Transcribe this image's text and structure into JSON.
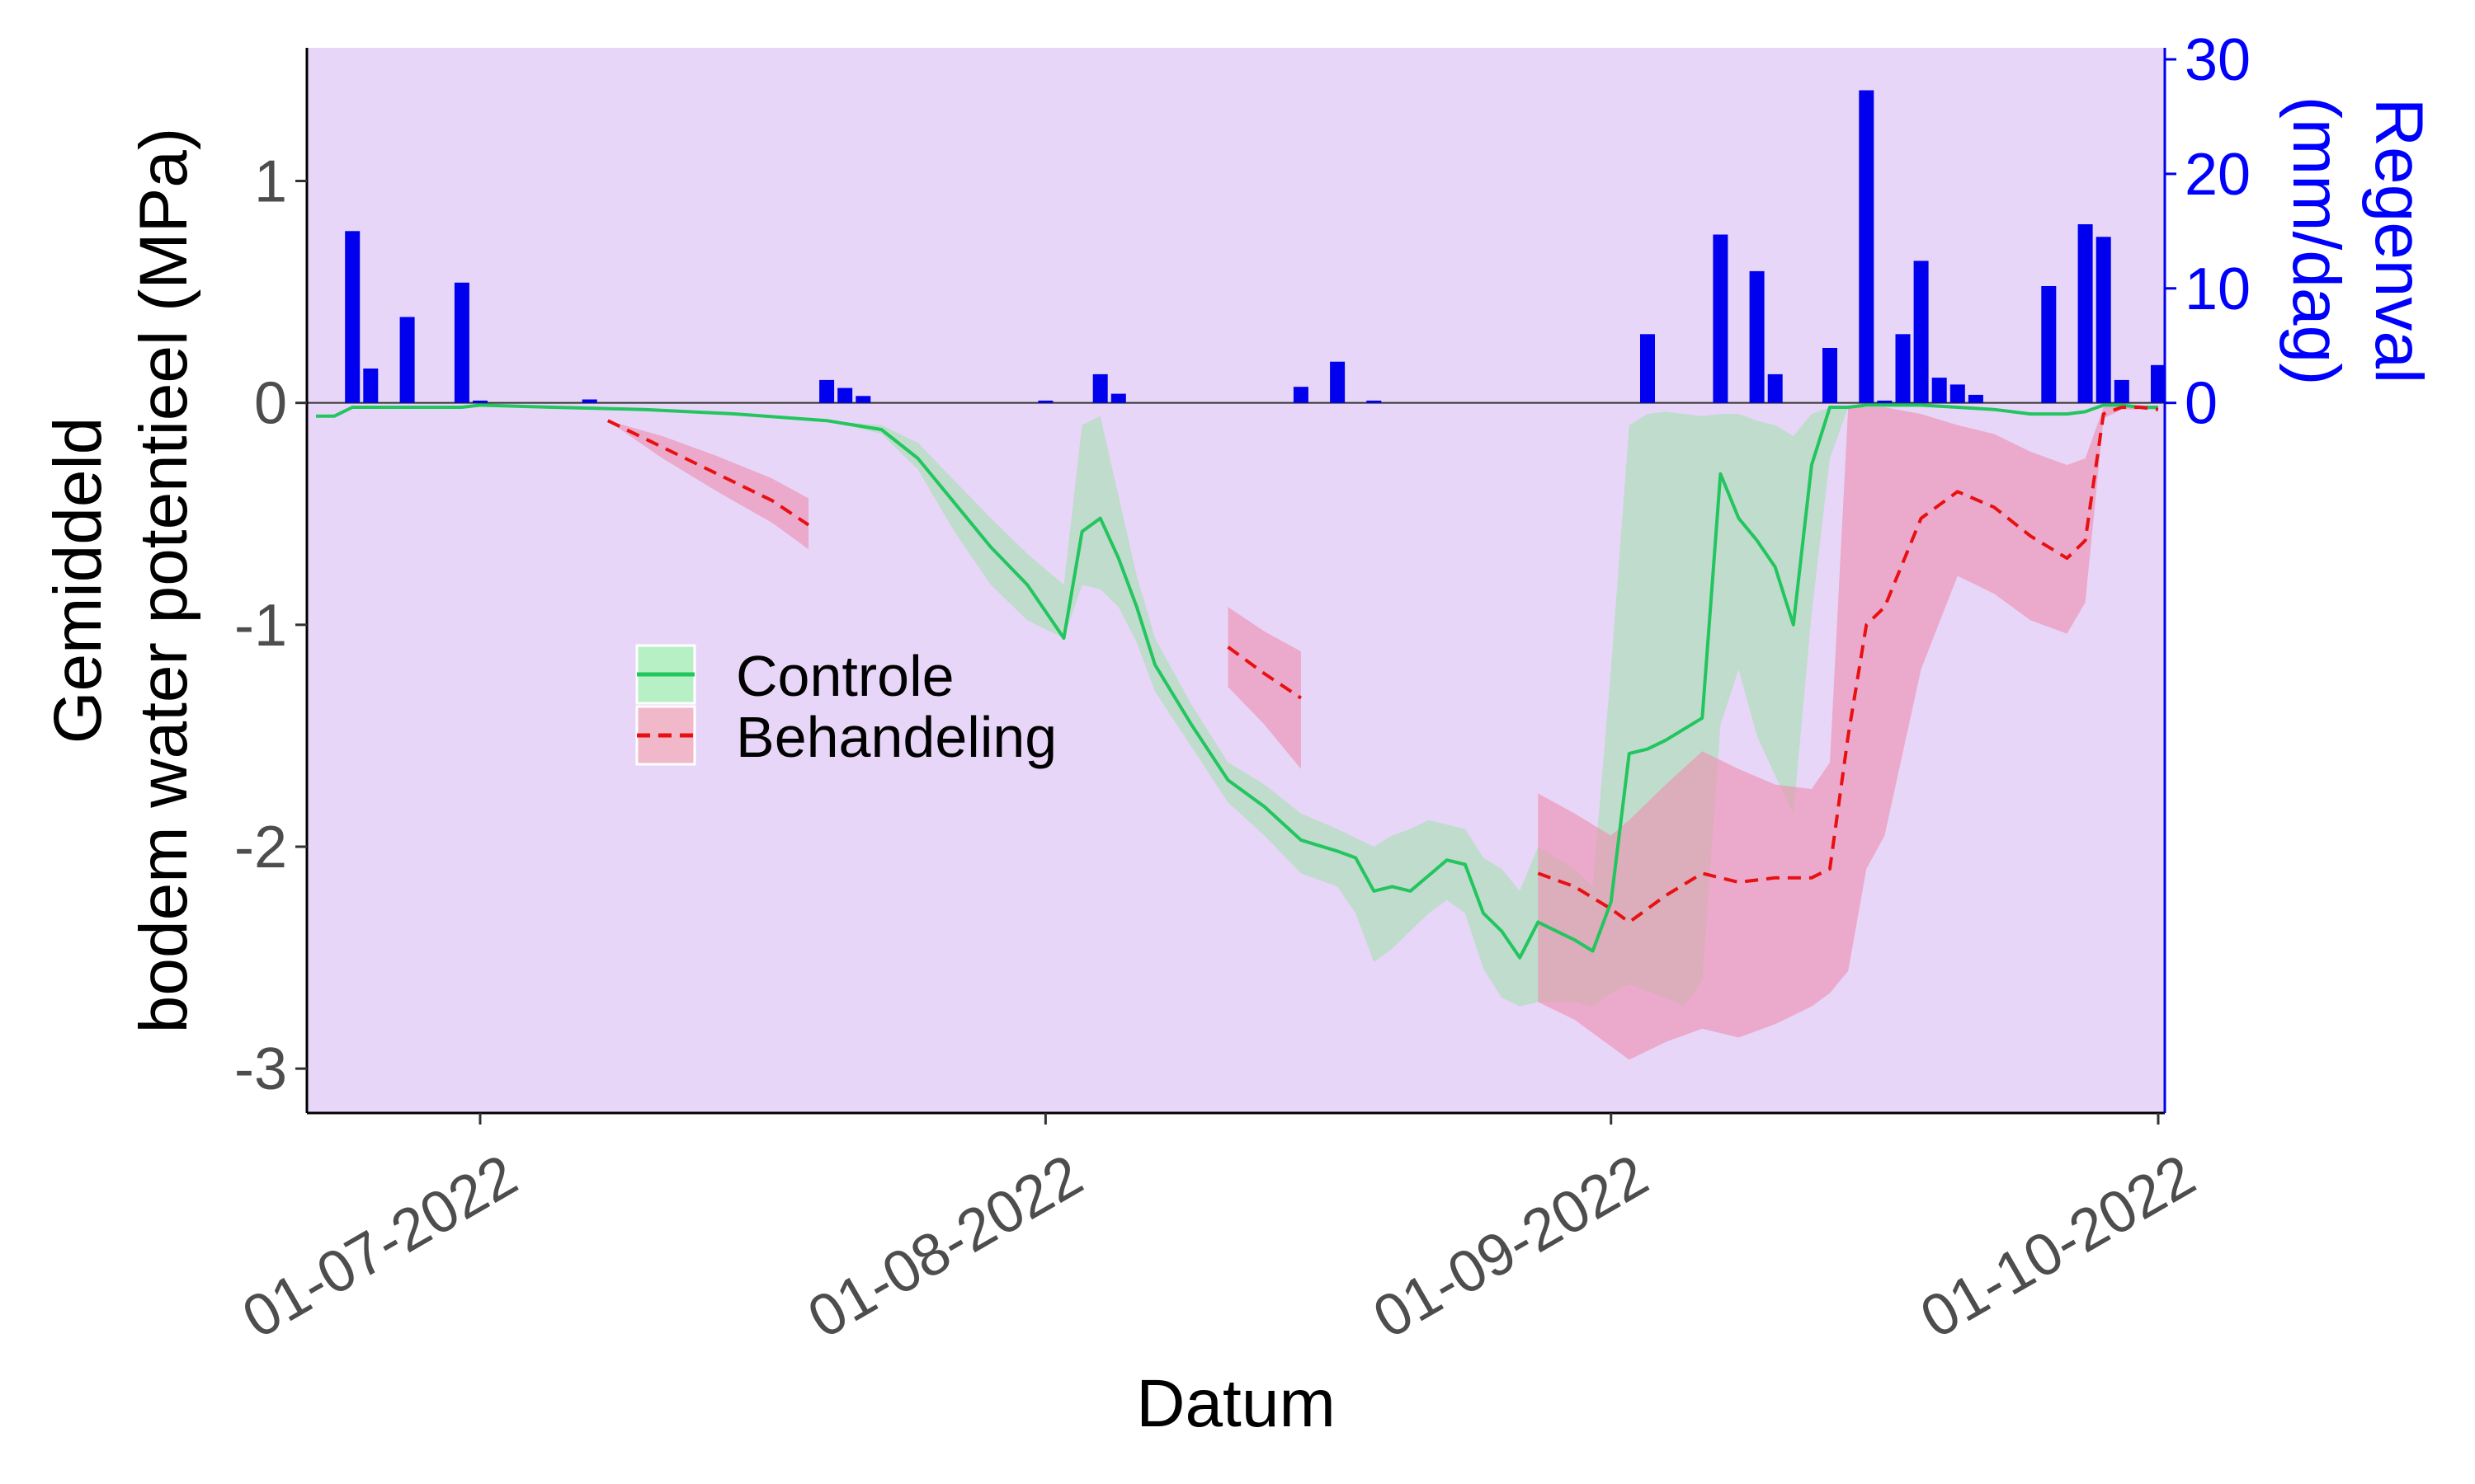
{
  "chart_data": {
    "type": "line",
    "xlabel": "Datum",
    "ylabel_lines": [
      "Gemiddeld",
      "bodem water potentieel (MPa)"
    ],
    "ylabel_right_lines": [
      "Regenval",
      "(mm/dag)"
    ],
    "x_range": [
      "2022-06-22",
      "2022-10-01"
    ],
    "x_ticks": [
      {
        "date": "2022-07-01",
        "label": "01-07-2022"
      },
      {
        "date": "2022-08-01",
        "label": "01-08-2022"
      },
      {
        "date": "2022-09-01",
        "label": "01-09-2022"
      },
      {
        "date": "2022-10-01",
        "label": "01-10-2022"
      }
    ],
    "ylim": [
      -3.2,
      1.6
    ],
    "y_ticks": [
      {
        "value": 1,
        "label": "1"
      },
      {
        "value": 0,
        "label": "0"
      },
      {
        "value": -1,
        "label": "-1"
      },
      {
        "value": -2,
        "label": "-2"
      },
      {
        "value": -3,
        "label": "-3"
      }
    ],
    "y2_ticks": [
      {
        "value": 0,
        "label": "0"
      },
      {
        "value": 10,
        "label": "10"
      },
      {
        "value": 20,
        "label": "20"
      },
      {
        "value": 30,
        "label": "30"
      }
    ],
    "y2_max": 32,
    "background_color": "#e8d6f8",
    "rain_color": "#0000ee",
    "grid": false,
    "legend": {
      "placement": "center-left",
      "entries": [
        {
          "name": "Controle",
          "color": "#22c55e",
          "fill": "#b7f0c4",
          "dash": "solid"
        },
        {
          "name": "Behandeling",
          "color": "#e81010",
          "fill": "#f0b8c8",
          "dash": "dashed"
        }
      ]
    },
    "rain": [
      {
        "date": "2022-06-24",
        "value": 15
      },
      {
        "date": "2022-06-25",
        "value": 3
      },
      {
        "date": "2022-06-27",
        "value": 7.5
      },
      {
        "date": "2022-06-30",
        "value": 10.5
      },
      {
        "date": "2022-07-01",
        "value": 0.2
      },
      {
        "date": "2022-07-07",
        "value": 0.3
      },
      {
        "date": "2022-07-20",
        "value": 2
      },
      {
        "date": "2022-07-21",
        "value": 1.3
      },
      {
        "date": "2022-07-22",
        "value": 0.6
      },
      {
        "date": "2022-08-01",
        "value": 0.2
      },
      {
        "date": "2022-08-04",
        "value": 2.5
      },
      {
        "date": "2022-08-05",
        "value": 0.8
      },
      {
        "date": "2022-08-15",
        "value": 1.4
      },
      {
        "date": "2022-08-17",
        "value": 3.6
      },
      {
        "date": "2022-08-19",
        "value": 0.2
      },
      {
        "date": "2022-09-03",
        "value": 6
      },
      {
        "date": "2022-09-07",
        "value": 14.7
      },
      {
        "date": "2022-09-09",
        "value": 11.5
      },
      {
        "date": "2022-09-10",
        "value": 2.5
      },
      {
        "date": "2022-09-13",
        "value": 4.8
      },
      {
        "date": "2022-09-15",
        "value": 27.3
      },
      {
        "date": "2022-09-16",
        "value": 0.2
      },
      {
        "date": "2022-09-17",
        "value": 6
      },
      {
        "date": "2022-09-18",
        "value": 12.4
      },
      {
        "date": "2022-09-19",
        "value": 2.2
      },
      {
        "date": "2022-09-20",
        "value": 1.6
      },
      {
        "date": "2022-09-21",
        "value": 0.7
      },
      {
        "date": "2022-09-25",
        "value": 10.2
      },
      {
        "date": "2022-09-27",
        "value": 15.6
      },
      {
        "date": "2022-09-28",
        "value": 14.5
      },
      {
        "date": "2022-09-29",
        "value": 2
      },
      {
        "date": "2022-10-01",
        "value": 3.3
      }
    ],
    "series": [
      {
        "name": "Controle",
        "segments": [
          {
            "dates": [
              "2022-06-22",
              "2022-06-23",
              "2022-06-24",
              "2022-06-26",
              "2022-06-28",
              "2022-06-30",
              "2022-07-01",
              "2022-07-05",
              "2022-07-10",
              "2022-07-15",
              "2022-07-20",
              "2022-07-23",
              "2022-07-25",
              "2022-07-27",
              "2022-07-29",
              "2022-07-31",
              "2022-08-02",
              "2022-08-03",
              "2022-08-04",
              "2022-08-05",
              "2022-08-06",
              "2022-08-07",
              "2022-08-09",
              "2022-08-11",
              "2022-08-13",
              "2022-08-15",
              "2022-08-17",
              "2022-08-18",
              "2022-08-19",
              "2022-08-20",
              "2022-08-21",
              "2022-08-22",
              "2022-08-23",
              "2022-08-24",
              "2022-08-25",
              "2022-08-26",
              "2022-08-27",
              "2022-08-28",
              "2022-08-29",
              "2022-08-30",
              "2022-08-31",
              "2022-09-01",
              "2022-09-02",
              "2022-09-03",
              "2022-09-04",
              "2022-09-05",
              "2022-09-06",
              "2022-09-07",
              "2022-09-08",
              "2022-09-09",
              "2022-09-10",
              "2022-09-11",
              "2022-09-12",
              "2022-09-13",
              "2022-09-14",
              "2022-09-15",
              "2022-09-16",
              "2022-09-18",
              "2022-09-20",
              "2022-09-22",
              "2022-09-24",
              "2022-09-26",
              "2022-09-27",
              "2022-09-28",
              "2022-09-29",
              "2022-09-30",
              "2022-10-01"
            ],
            "mean": [
              -0.06,
              -0.06,
              -0.02,
              -0.02,
              -0.02,
              -0.02,
              -0.01,
              -0.02,
              -0.03,
              -0.05,
              -0.08,
              -0.12,
              -0.25,
              -0.45,
              -0.65,
              -0.82,
              -1.06,
              -0.58,
              -0.52,
              -0.7,
              -0.92,
              -1.18,
              -1.45,
              -1.7,
              -1.82,
              -1.97,
              -2.02,
              -2.05,
              -2.2,
              -2.18,
              -2.2,
              -2.13,
              -2.06,
              -2.08,
              -2.3,
              -2.38,
              -2.5,
              -2.34,
              -2.38,
              -2.42,
              -2.47,
              -2.25,
              -1.58,
              -1.56,
              -1.52,
              -1.47,
              -1.42,
              -0.32,
              -0.52,
              -0.62,
              -0.74,
              -1.0,
              -0.28,
              -0.02,
              -0.02,
              -0.01,
              -0.01,
              -0.01,
              -0.02,
              -0.03,
              -0.05,
              -0.05,
              -0.04,
              -0.01,
              -0.01,
              -0.02,
              -0.02
            ],
            "lower": [
              -0.06,
              -0.06,
              -0.02,
              -0.02,
              -0.02,
              -0.02,
              -0.01,
              -0.02,
              -0.03,
              -0.05,
              -0.08,
              -0.14,
              -0.3,
              -0.58,
              -0.82,
              -0.98,
              -1.06,
              -0.82,
              -0.84,
              -0.92,
              -1.08,
              -1.3,
              -1.55,
              -1.8,
              -1.95,
              -2.12,
              -2.18,
              -2.3,
              -2.52,
              -2.46,
              -2.38,
              -2.3,
              -2.24,
              -2.3,
              -2.55,
              -2.68,
              -2.72,
              -2.7,
              -2.7,
              -2.7,
              -2.72,
              -2.66,
              -2.62,
              -2.65,
              -2.68,
              -2.72,
              -2.6,
              -1.45,
              -1.2,
              -1.5,
              -1.68,
              -1.85,
              -0.95,
              -0.25,
              -0.02,
              -0.01,
              -0.01,
              -0.01,
              -0.02,
              -0.03,
              -0.05,
              -0.05,
              -0.04,
              -0.01,
              -0.01,
              -0.02,
              -0.02
            ],
            "upper": [
              -0.06,
              -0.06,
              -0.02,
              -0.02,
              -0.02,
              -0.02,
              -0.01,
              -0.02,
              -0.03,
              -0.05,
              -0.08,
              -0.1,
              -0.18,
              -0.35,
              -0.52,
              -0.68,
              -0.82,
              -0.1,
              -0.06,
              -0.42,
              -0.78,
              -1.06,
              -1.36,
              -1.62,
              -1.72,
              -1.85,
              -1.92,
              -1.96,
              -2.0,
              -1.95,
              -1.92,
              -1.88,
              -1.9,
              -1.92,
              -2.05,
              -2.1,
              -2.2,
              -2.0,
              -2.05,
              -2.1,
              -2.18,
              -1.2,
              -0.1,
              -0.05,
              -0.04,
              -0.05,
              -0.06,
              -0.05,
              -0.05,
              -0.08,
              -0.1,
              -0.15,
              -0.05,
              -0.02,
              -0.02,
              -0.01,
              -0.01,
              -0.01,
              -0.02,
              -0.03,
              -0.05,
              -0.05,
              -0.04,
              -0.01,
              -0.01,
              -0.02,
              -0.02
            ]
          }
        ]
      },
      {
        "name": "Behandeling",
        "segments": [
          {
            "dates": [
              "2022-07-08",
              "2022-07-11",
              "2022-07-14",
              "2022-07-17",
              "2022-07-19"
            ],
            "mean": [
              -0.08,
              -0.2,
              -0.32,
              -0.44,
              -0.55
            ],
            "lower": [
              -0.08,
              -0.25,
              -0.4,
              -0.54,
              -0.66
            ],
            "upper": [
              -0.08,
              -0.15,
              -0.24,
              -0.34,
              -0.43
            ]
          },
          {
            "dates": [
              "2022-08-11",
              "2022-08-13",
              "2022-08-15"
            ],
            "mean": [
              -1.1,
              -1.22,
              -1.33
            ],
            "lower": [
              -1.28,
              -1.45,
              -1.65
            ],
            "upper": [
              -0.92,
              -1.03,
              -1.12
            ]
          },
          {
            "dates": [
              "2022-08-28",
              "2022-08-30",
              "2022-09-01",
              "2022-09-02",
              "2022-09-04",
              "2022-09-06",
              "2022-09-08",
              "2022-09-10",
              "2022-09-12",
              "2022-09-13",
              "2022-09-14",
              "2022-09-15",
              "2022-09-16",
              "2022-09-18",
              "2022-09-20",
              "2022-09-22",
              "2022-09-24",
              "2022-09-26",
              "2022-09-27",
              "2022-09-28",
              "2022-09-29",
              "2022-09-30",
              "2022-10-01"
            ],
            "mean": [
              -2.12,
              -2.18,
              -2.28,
              -2.34,
              -2.22,
              -2.12,
              -2.16,
              -2.14,
              -2.14,
              -2.1,
              -1.5,
              -1.0,
              -0.92,
              -0.52,
              -0.4,
              -0.47,
              -0.6,
              -0.7,
              -0.62,
              -0.05,
              -0.02,
              -0.02,
              -0.03
            ],
            "lower": [
              -2.7,
              -2.78,
              -2.9,
              -2.96,
              -2.88,
              -2.82,
              -2.86,
              -2.8,
              -2.72,
              -2.66,
              -2.56,
              -2.1,
              -1.95,
              -1.2,
              -0.78,
              -0.86,
              -0.98,
              -1.04,
              -0.9,
              -0.07,
              -0.03,
              -0.03,
              -0.03
            ],
            "upper": [
              -1.76,
              -1.85,
              -1.95,
              -1.88,
              -1.72,
              -1.57,
              -1.65,
              -1.72,
              -1.74,
              -1.62,
              -0.02,
              -0.02,
              -0.02,
              -0.05,
              -0.1,
              -0.14,
              -0.22,
              -0.28,
              -0.25,
              -0.02,
              -0.01,
              -0.01,
              -0.02
            ]
          }
        ]
      }
    ]
  }
}
